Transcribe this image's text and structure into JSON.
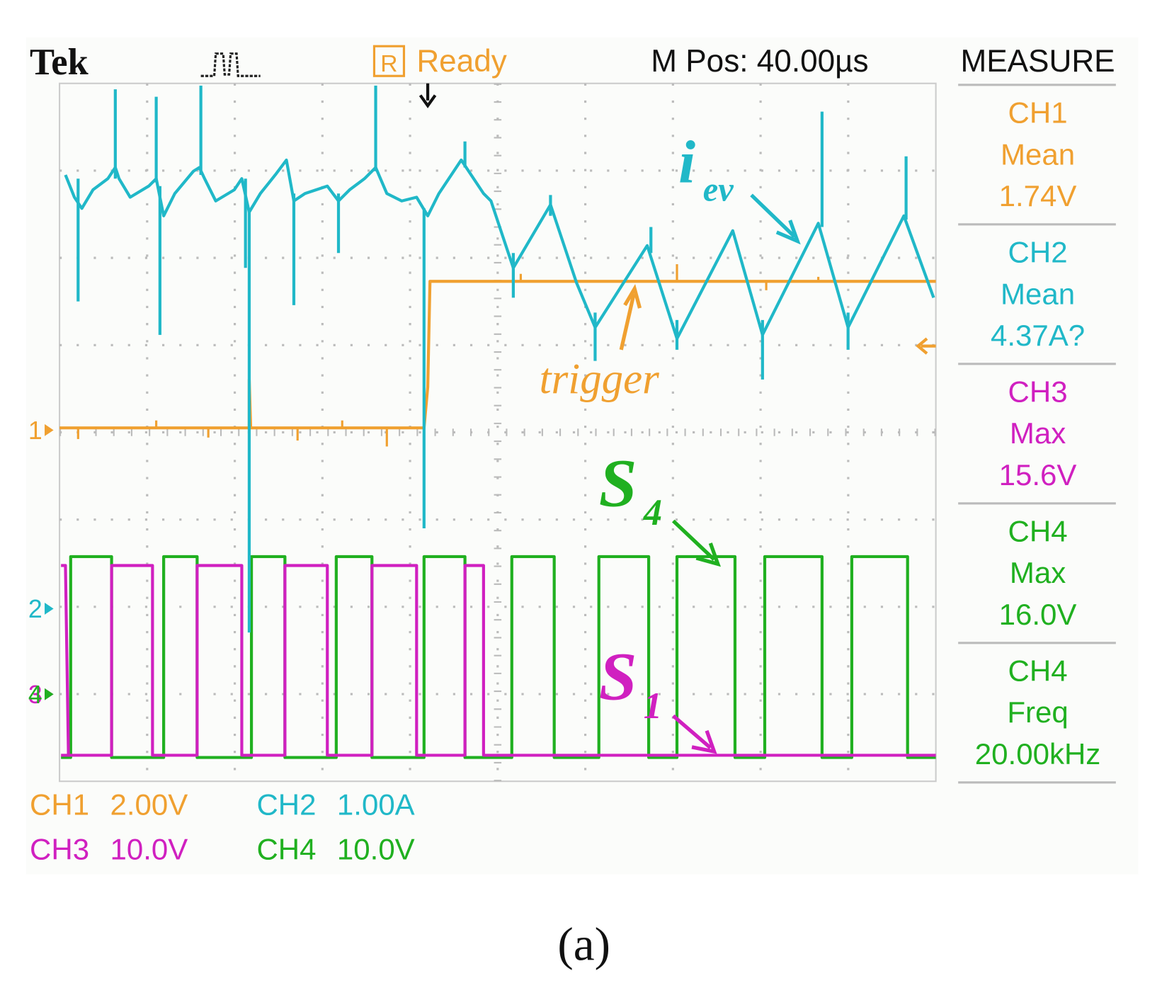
{
  "header": {
    "brand": "Tek",
    "status_icon": "R",
    "status": "Ready",
    "position": "M Pos: 40.00µs",
    "menu": "MEASURE"
  },
  "measurements": [
    {
      "channel": "CH1",
      "type": "Mean",
      "value": "1.74V"
    },
    {
      "channel": "CH2",
      "type": "Mean",
      "value": "4.37A?"
    },
    {
      "channel": "CH3",
      "type": "Max",
      "value": "15.6V"
    },
    {
      "channel": "CH4",
      "type": "Max",
      "value": "16.0V"
    },
    {
      "channel": "CH4",
      "type": "Freq",
      "value": "20.00kHz"
    }
  ],
  "channel_scales": [
    {
      "channel": "CH1",
      "scale": "2.00V"
    },
    {
      "channel": "CH2",
      "scale": "1.00A"
    },
    {
      "channel": "CH3",
      "scale": "10.0V"
    },
    {
      "channel": "CH4",
      "scale": "10.0V"
    }
  ],
  "channel_markers": [
    "1",
    "2",
    "3",
    "4"
  ],
  "annotations": {
    "i_ev": {
      "main": "i",
      "sub": "ev"
    },
    "trigger": "trigger",
    "s4": {
      "main": "S",
      "sub": "4"
    },
    "s1": {
      "main": "S",
      "sub": "1"
    }
  },
  "caption": "(a)"
}
